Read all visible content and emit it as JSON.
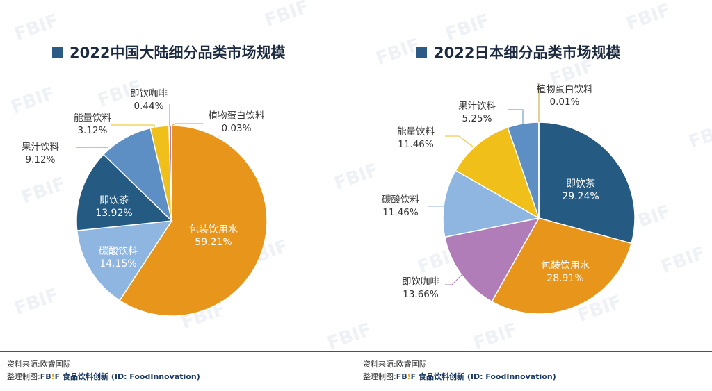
{
  "chart_data": [
    {
      "type": "pie",
      "title": "2022中国大陆细分品类市场规模",
      "slices": [
        {
          "label": "包装饮用水",
          "value_text": "59.21%",
          "value": 59.21,
          "color": "#e8951b",
          "label_inside": true
        },
        {
          "label": "碳酸饮料",
          "value_text": "14.15%",
          "value": 14.15,
          "color": "#8fb6e0",
          "label_inside": true
        },
        {
          "label": "即饮茶",
          "value_text": "13.92%",
          "value": 13.92,
          "color": "#255a82",
          "label_inside": true
        },
        {
          "label": "果汁饮料",
          "value_text": "9.12%",
          "value": 9.12,
          "color": "#5d8ec4",
          "label_inside": false
        },
        {
          "label": "能量饮料",
          "value_text": "3.12%",
          "value": 3.12,
          "color": "#f0bf1a",
          "label_inside": false
        },
        {
          "label": "即饮咖啡",
          "value_text": "0.44%",
          "value": 0.44,
          "color": "#b07db8",
          "label_inside": false
        },
        {
          "label": "植物蛋白饮料",
          "value_text": "0.03%",
          "value": 0.03,
          "color": "#e8951b",
          "label_inside": false
        }
      ]
    },
    {
      "type": "pie",
      "title": "2022日本细分品类市场规模",
      "slices": [
        {
          "label": "即饮茶",
          "value_text": "29.24%",
          "value": 29.24,
          "color": "#255a82",
          "label_inside": true
        },
        {
          "label": "包装饮用水",
          "value_text": "28.91%",
          "value": 28.91,
          "color": "#e8951b",
          "label_inside": true
        },
        {
          "label": "即饮咖啡",
          "value_text": "13.66%",
          "value": 13.66,
          "color": "#b07db8",
          "label_inside": false
        },
        {
          "label": "碳酸饮料",
          "value_text": "11.46%",
          "value": 11.46,
          "color": "#8fb6e0",
          "label_inside": false
        },
        {
          "label": "能量饮料",
          "value_text": "11.46%",
          "value": 11.46,
          "color": "#f0bf1a",
          "label_inside": false
        },
        {
          "label": "果汁饮料",
          "value_text": "5.25%",
          "value": 5.25,
          "color": "#5d8ec4",
          "label_inside": false
        },
        {
          "label": "植物蛋白饮料",
          "value_text": "0.01%",
          "value": 0.01,
          "color": "#c9a227",
          "label_inside": false
        }
      ]
    }
  ],
  "footer": {
    "source": "资料来源:欧睿国际",
    "compiled_prefix": "整理制图:",
    "brand_fb": "FB",
    "brand_bang": "!",
    "brand_f": "F",
    "brand_rest": " 食品饮料创新 (ID: FoodInnovation)"
  },
  "watermark_text": "FBIF"
}
